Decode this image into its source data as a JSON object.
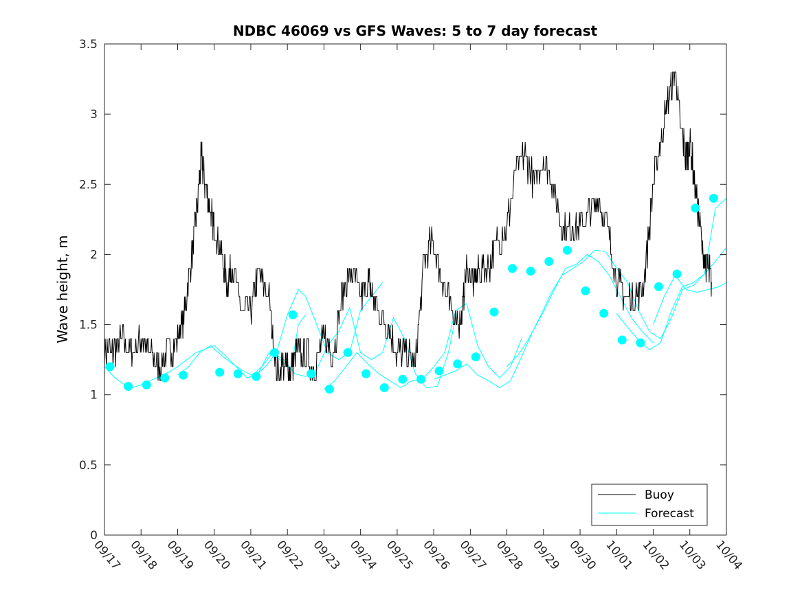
{
  "chart_data": {
    "type": "line",
    "title": "NDBC 46069 vs GFS Waves: 5 to 7 day forecast",
    "xlabel": "",
    "ylabel": "Wave height, m",
    "xlim": [
      0,
      17
    ],
    "ylim": [
      0,
      3.5
    ],
    "yticks": [
      0,
      0.5,
      1,
      1.5,
      2,
      2.5,
      3,
      3.5
    ],
    "ytick_labels": [
      "0",
      "0.5",
      "1",
      "1.5",
      "2",
      "2.5",
      "3",
      "3.5"
    ],
    "xtick_labels": [
      "09/17",
      "09/18",
      "09/19",
      "09/20",
      "09/21",
      "09/22",
      "09/23",
      "09/24",
      "09/25",
      "09/26",
      "09/27",
      "09/28",
      "09/29",
      "09/30",
      "10/01",
      "10/02",
      "10/03",
      "10/04"
    ],
    "legend": {
      "location": "bottom-right",
      "entries": [
        "Buoy",
        "Forecast"
      ]
    },
    "colors": {
      "buoy": "#000000",
      "forecast": "#00ffff",
      "axes": "#262626"
    },
    "buoy": {
      "name": "Buoy",
      "x": [
        0,
        0.25,
        0.5,
        0.75,
        1,
        1.25,
        1.5,
        1.75,
        2,
        2.2,
        2.4,
        2.55,
        2.65,
        2.75,
        2.9,
        3.0,
        3.2,
        3.35,
        3.5,
        3.75,
        4.0,
        4.2,
        4.5,
        4.7,
        4.95,
        5.1,
        5.25,
        5.5,
        5.75,
        6,
        6.25,
        6.5,
        6.75,
        7.0,
        7.2,
        7.35,
        7.5,
        7.75,
        8,
        8.25,
        8.5,
        8.75,
        9,
        9.25,
        9.5,
        9.75,
        9.9,
        10.1,
        10.25,
        10.5,
        10.75,
        11,
        11.25,
        11.5,
        11.75,
        12,
        12.25,
        12.5,
        12.75,
        13,
        13.25,
        13.5,
        13.75,
        14,
        14.25,
        14.5,
        14.75,
        15,
        15.2,
        15.4,
        15.6,
        15.75,
        15.9,
        16.0,
        16.15,
        16.35,
        16.5,
        16.6
      ],
      "y": [
        1.3,
        1.3,
        1.4,
        1.3,
        1.4,
        1.3,
        1.2,
        1.3,
        1.4,
        1.6,
        2.0,
        2.4,
        2.7,
        2.5,
        2.3,
        2.2,
        2.0,
        1.8,
        1.9,
        1.6,
        1.6,
        1.9,
        1.7,
        1.2,
        1.2,
        1.2,
        1.3,
        1.3,
        1.2,
        1.4,
        1.3,
        1.7,
        1.9,
        1.7,
        1.8,
        1.7,
        1.6,
        1.5,
        1.3,
        1.3,
        1.2,
        2.0,
        2.1,
        1.8,
        1.6,
        1.5,
        1.9,
        1.8,
        1.9,
        1.9,
        2.1,
        2.2,
        2.6,
        2.7,
        2.5,
        2.7,
        2.5,
        2.2,
        2.2,
        2.2,
        2.3,
        2.4,
        2.2,
        1.8,
        1.7,
        1.7,
        1.8,
        2.5,
        2.8,
        3.1,
        3.3,
        2.9,
        2.7,
        2.8,
        2.5,
        2.0,
        1.9,
        1.8
      ]
    },
    "forecast": {
      "name": "Forecast",
      "series": [
        {
          "x": [
            0,
            0.25,
            0.5,
            0.75,
            1,
            1.25,
            1.5,
            1.75,
            2,
            2.5,
            3,
            3.3,
            3.6,
            3.9,
            4.2,
            4.5,
            4.8,
            5.1,
            5.3,
            5.5
          ],
          "y": [
            1.2,
            1.13,
            1.08,
            1.05,
            1.07,
            1.1,
            1.13,
            1.16,
            1.2,
            1.3,
            1.35,
            1.28,
            1.2,
            1.12,
            1.15,
            1.3,
            1.25,
            1.18,
            1.5,
            1.57
          ]
        },
        {
          "x": [
            2,
            2.3,
            2.6,
            2.9,
            3.2,
            3.5,
            3.8,
            4.1,
            4.4,
            4.7,
            5.0,
            5.3,
            5.5,
            5.8,
            6.1,
            6.4,
            6.7,
            7.0,
            7.3,
            7.6
          ],
          "y": [
            1.14,
            1.2,
            1.3,
            1.35,
            1.28,
            1.22,
            1.17,
            1.13,
            1.2,
            1.3,
            1.57,
            1.75,
            1.7,
            1.5,
            1.3,
            1.25,
            1.3,
            1.6,
            1.7,
            1.8
          ]
        },
        {
          "x": [
            4,
            4.3,
            4.6,
            4.9,
            5.2,
            5.5,
            5.8,
            6.1,
            6.4,
            6.7,
            7.0,
            7.3,
            7.6,
            7.9,
            8.2,
            8.5,
            8.8,
            9.1,
            9.4,
            9.6
          ],
          "y": [
            1.13,
            1.2,
            1.3,
            1.25,
            1.15,
            1.13,
            1.18,
            1.35,
            1.45,
            1.62,
            1.3,
            1.25,
            1.3,
            1.55,
            1.4,
            1.15,
            1.05,
            1.06,
            1.3,
            1.55
          ]
        },
        {
          "x": [
            6,
            6.3,
            6.6,
            6.9,
            7.2,
            7.5,
            7.8,
            8.1,
            8.4,
            8.7,
            9.0,
            9.3,
            9.6,
            9.9,
            10.2,
            10.5,
            10.8,
            11.1,
            11.4
          ],
          "y": [
            1.04,
            1.1,
            1.2,
            1.3,
            1.22,
            1.15,
            1.1,
            1.05,
            1.1,
            1.11,
            1.2,
            1.3,
            1.6,
            1.65,
            1.35,
            1.2,
            1.12,
            1.2,
            1.4
          ]
        },
        {
          "x": [
            9,
            9.3,
            9.6,
            9.9,
            10.2,
            10.5,
            10.8,
            11.1,
            11.4,
            11.7,
            12.0,
            12.3,
            12.6,
            12.9,
            13.2,
            13.5,
            13.8,
            14.1,
            14.4,
            14.7,
            15.0
          ],
          "y": [
            1.11,
            1.14,
            1.17,
            1.22,
            1.14,
            1.1,
            1.05,
            1.1,
            1.27,
            1.45,
            1.59,
            1.75,
            1.9,
            1.93,
            2.0,
            1.95,
            1.85,
            1.7,
            1.55,
            1.45,
            1.37
          ]
        },
        {
          "x": [
            11,
            11.3,
            11.6,
            11.9,
            12.2,
            12.5,
            12.8,
            13.1,
            13.4,
            13.7,
            14.0,
            14.3,
            14.6,
            14.9,
            15.2,
            15.5,
            15.8,
            16.1,
            16.4,
            16.7,
            17
          ],
          "y": [
            1.2,
            1.28,
            1.4,
            1.55,
            1.72,
            1.85,
            1.9,
            1.95,
            2.03,
            2.02,
            1.9,
            1.8,
            1.6,
            1.45,
            1.4,
            1.55,
            1.75,
            1.78,
            1.86,
            1.95,
            2.05
          ]
        },
        {
          "x": [
            14,
            14.3,
            14.6,
            14.9,
            15.2,
            15.5,
            15.8,
            16.1,
            16.4,
            16.7,
            17
          ],
          "y": [
            1.58,
            1.48,
            1.39,
            1.32,
            1.37,
            1.6,
            1.77,
            1.8,
            1.86,
            2.33,
            2.4
          ]
        },
        {
          "x": [
            15,
            15.3,
            15.6,
            15.9,
            16.2,
            16.5,
            16.8,
            17
          ],
          "y": [
            1.5,
            1.7,
            1.85,
            1.75,
            1.73,
            1.75,
            1.77,
            1.8
          ]
        }
      ],
      "markers": {
        "x": [
          0.15,
          0.65,
          1.15,
          1.65,
          2.15,
          3.15,
          3.65,
          4.15,
          4.65,
          5.15,
          5.65,
          6.15,
          6.65,
          7.15,
          7.65,
          8.15,
          8.65,
          9.15,
          9.65,
          10.15,
          10.65,
          11.15,
          11.65,
          12.15,
          12.65,
          13.15,
          13.65,
          14.15,
          14.65,
          15.15,
          15.65,
          16.15,
          16.65
        ],
        "y": [
          1.2,
          1.06,
          1.07,
          1.12,
          1.14,
          1.16,
          1.15,
          1.13,
          1.3,
          1.57,
          1.15,
          1.04,
          1.3,
          1.15,
          1.05,
          1.11,
          1.11,
          1.17,
          1.22,
          1.27,
          1.59,
          1.9,
          1.88,
          1.95,
          2.03,
          1.74,
          1.58,
          1.39,
          1.37,
          1.77,
          1.86,
          2.33,
          2.4
        ]
      }
    }
  }
}
